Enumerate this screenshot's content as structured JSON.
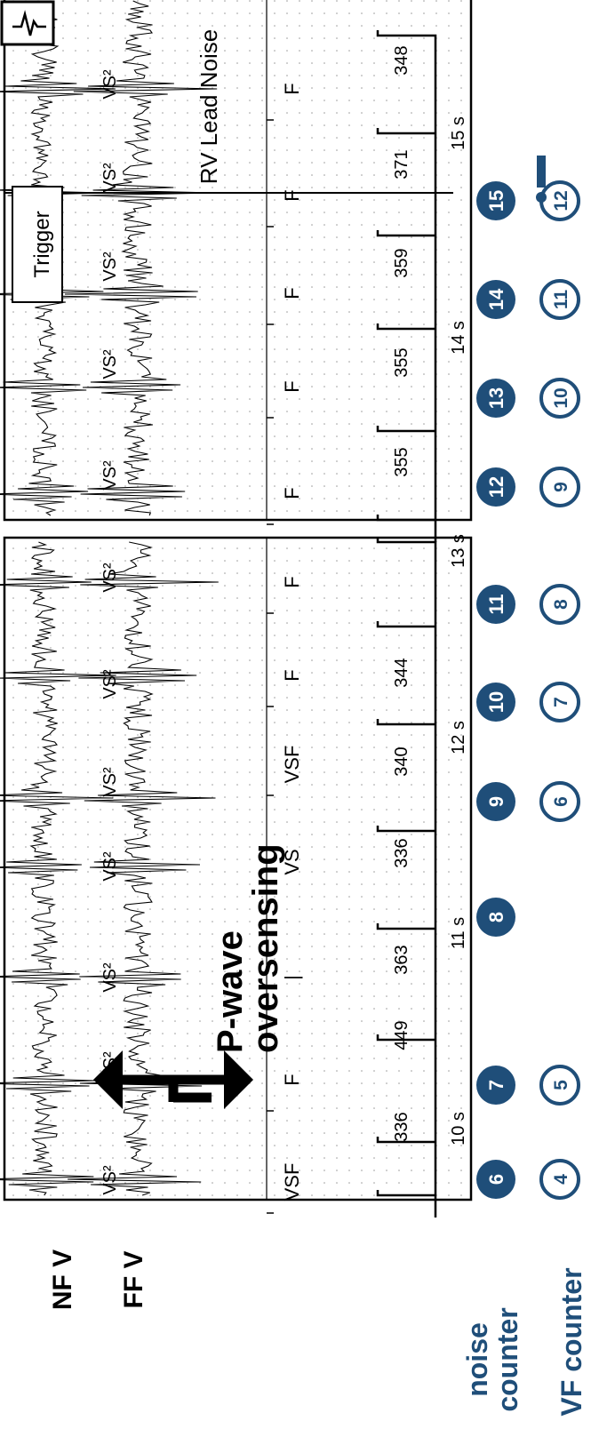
{
  "channels": {
    "near_field": "NF V",
    "far_field": "FF V"
  },
  "counter_labels": {
    "noise_line1": "noise",
    "noise_line2": "counter",
    "vf": "VF counter"
  },
  "annotation": {
    "line1": "P-wave",
    "line2": "oversensing"
  },
  "trigger": {
    "label": "Trigger"
  },
  "noise_note": "RV Lead Noise",
  "time_ticks": [
    "10 s",
    "11 s",
    "12 s",
    "13 s",
    "14 s",
    "15 s"
  ],
  "vs_label": "VS²",
  "marker_labels_lower": [
    "VSF",
    "F",
    "|",
    "VS",
    "VSF",
    "F",
    "F"
  ],
  "marker_labels_upper": [
    "F",
    "F",
    "F",
    "F",
    "F"
  ],
  "intervals_lower": [
    "336",
    "449",
    "363",
    "336",
    "340",
    "344"
  ],
  "intervals_upper": [
    "355",
    "355",
    "359",
    "371",
    "348"
  ],
  "noise_counter_values": [
    "6",
    "7",
    "8",
    "9",
    "10",
    "11",
    "12",
    "13",
    "14",
    "15"
  ],
  "vf_counter_values": [
    "4",
    "5",
    "6",
    "7",
    "8",
    "9",
    "10",
    "11",
    "12"
  ],
  "alert_mark": "!",
  "colors": {
    "navy": "#1f4e79",
    "ink": "#000000",
    "grid": "#9a9a9a"
  }
}
